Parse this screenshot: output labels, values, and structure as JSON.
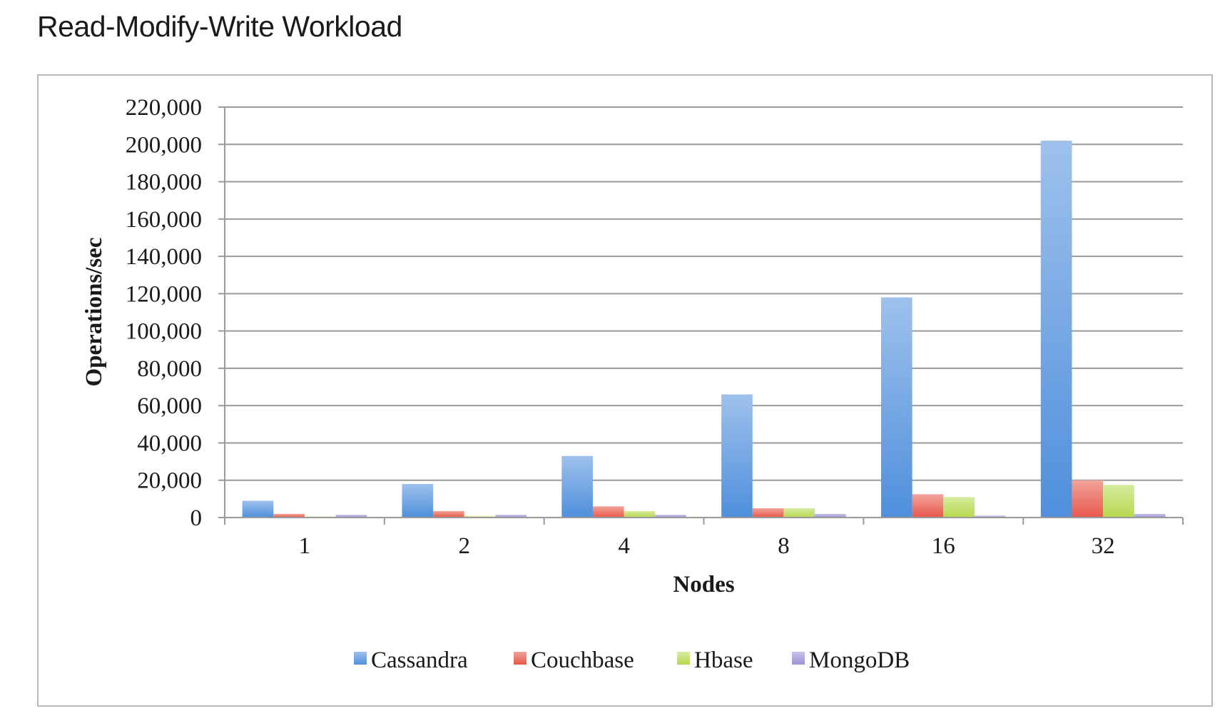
{
  "slide": {
    "title": "Read-Modify-Write Workload"
  },
  "chart_data": {
    "type": "bar",
    "title": "",
    "xlabel": "Nodes",
    "ylabel": "Operations/sec",
    "ylim": [
      0,
      220000
    ],
    "yticks": [
      0,
      20000,
      40000,
      60000,
      80000,
      100000,
      120000,
      140000,
      160000,
      180000,
      200000,
      220000
    ],
    "ytick_labels": [
      "0",
      "20,000",
      "40,000",
      "60,000",
      "80,000",
      "100,000",
      "120,000",
      "140,000",
      "160,000",
      "180,000",
      "200,000",
      "220,000"
    ],
    "grid": true,
    "legend_position": "bottom",
    "categories": [
      "1",
      "2",
      "4",
      "8",
      "16",
      "32"
    ],
    "series": [
      {
        "name": "Cassandra",
        "color": "#4f8fdc",
        "values": [
          9000,
          18000,
          33000,
          66000,
          118000,
          202000
        ]
      },
      {
        "name": "Couchbase",
        "color": "#e8574a",
        "values": [
          2000,
          3500,
          6000,
          5000,
          12500,
          20000
        ]
      },
      {
        "name": "Hbase",
        "color": "#b6d94e",
        "values": [
          500,
          800,
          3500,
          5000,
          11000,
          17500
        ]
      },
      {
        "name": "MongoDB",
        "color": "#9a92d6",
        "values": [
          1500,
          1500,
          1500,
          2000,
          1000,
          2000
        ]
      }
    ]
  }
}
